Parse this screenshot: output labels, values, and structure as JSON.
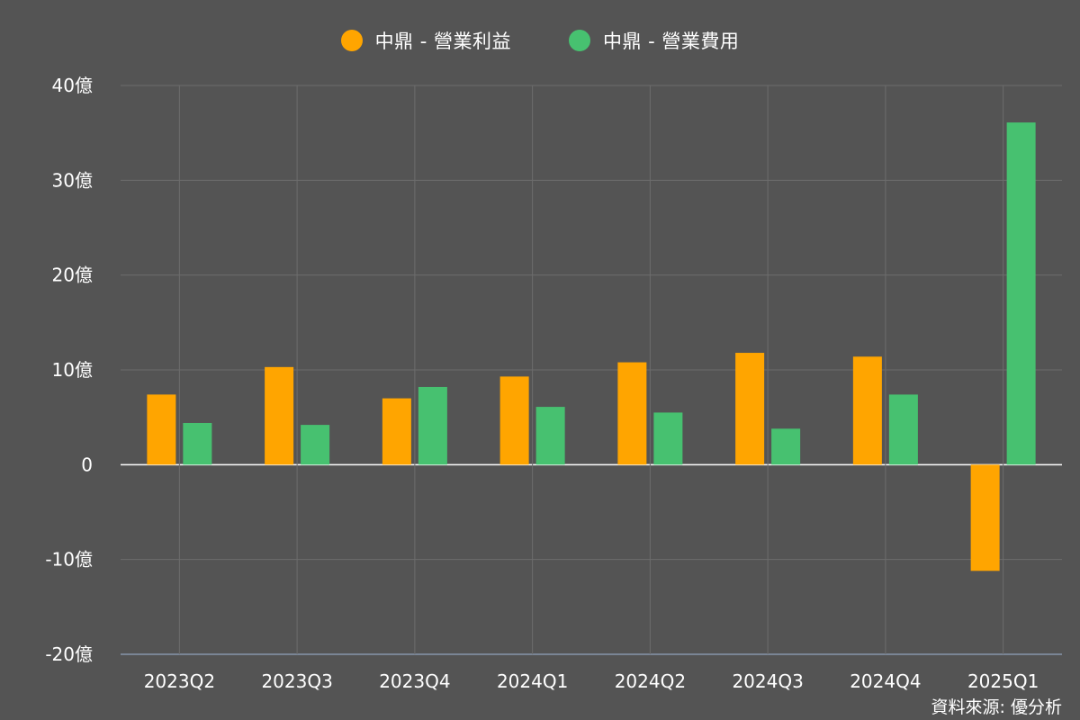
{
  "chart_data": {
    "type": "bar",
    "categories": [
      "2023Q2",
      "2023Q3",
      "2023Q4",
      "2024Q1",
      "2024Q2",
      "2024Q3",
      "2024Q4",
      "2025Q1"
    ],
    "series": [
      {
        "name": "中鼎 - 營業利益",
        "color": "#FFA500",
        "values": [
          7.4,
          10.3,
          7.0,
          9.3,
          10.8,
          11.8,
          11.4,
          -11.2
        ]
      },
      {
        "name": "中鼎 - 營業費用",
        "color": "#47C170",
        "values": [
          4.4,
          4.2,
          8.2,
          6.1,
          5.5,
          3.8,
          7.4,
          36.1
        ]
      }
    ],
    "ylim": [
      -20,
      40
    ],
    "yticks": [
      {
        "value": 40,
        "label": "40億"
      },
      {
        "value": 30,
        "label": "30億"
      },
      {
        "value": 20,
        "label": "20億"
      },
      {
        "value": 10,
        "label": "10億"
      },
      {
        "value": 0,
        "label": "0"
      },
      {
        "value": -10,
        "label": "-10億"
      },
      {
        "value": -20,
        "label": "-20億"
      }
    ],
    "grid": true,
    "legend_position": "top-center",
    "source_note": "資料來源: 優分析"
  }
}
